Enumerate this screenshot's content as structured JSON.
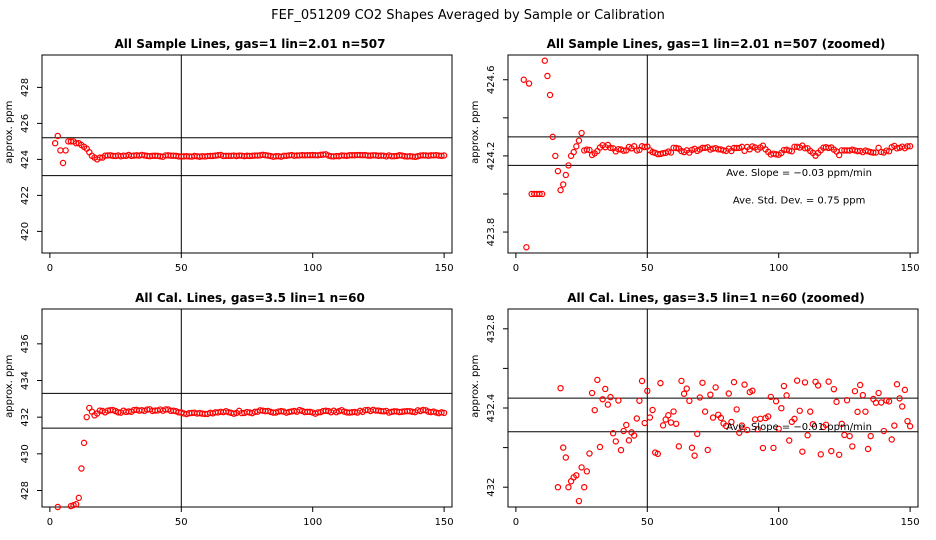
{
  "figure_title": "FEF_051209  CO2 Shapes Averaged by Sample or Calibration",
  "chart_data": [
    {
      "type": "scatter",
      "title": "All Sample Lines, gas=1 lin=2.01 n=507",
      "ylabel": "approx. ppm",
      "xlim": [
        -3,
        153
      ],
      "ylim": [
        418.8,
        429.8
      ],
      "xticks": [
        0,
        50,
        100,
        150
      ],
      "yticks": [
        420,
        422,
        424,
        426,
        428
      ],
      "hlines": [
        425.2,
        423.1
      ],
      "vlines": [
        50
      ],
      "marker_color": "#ff0000",
      "series_gen": {
        "kind": "full",
        "ybase": 424.2,
        "noise": 0.06
      },
      "series": [
        {
          "x": [
            2,
            3,
            4,
            5,
            6,
            7,
            8,
            9,
            10,
            11,
            12,
            13,
            14,
            15,
            16,
            17,
            18,
            19,
            20
          ],
          "y": [
            424.9,
            425.3,
            424.5,
            423.8,
            424.5,
            425.0,
            425.0,
            425.0,
            424.9,
            424.9,
            424.8,
            424.7,
            424.6,
            424.4,
            424.2,
            424.1,
            424.0,
            424.1,
            424.1
          ]
        }
      ],
      "annotations": []
    },
    {
      "type": "scatter",
      "title": "All Sample Lines, gas=1 lin=2.01 n=507 (zoomed)",
      "ylabel": "approx. ppm",
      "xlim": [
        -3,
        153
      ],
      "ylim": [
        423.69,
        424.73
      ],
      "xticks": [
        0,
        50,
        100,
        150
      ],
      "yticks": [
        423.8,
        424.2,
        424.6
      ],
      "ytick_minor": [
        424.0,
        424.4
      ],
      "hlines": [
        424.3,
        424.15
      ],
      "vlines": [
        50
      ],
      "marker_color": "#ff0000",
      "series_gen": {
        "kind": "full",
        "ybase": 424.23,
        "noise": 0.03
      },
      "series": [
        {
          "x": [
            3,
            4,
            5,
            6,
            7,
            8,
            9,
            10,
            11,
            12,
            13,
            14,
            15,
            16,
            17,
            18,
            19,
            20,
            21,
            22,
            23,
            24,
            25
          ],
          "y": [
            424.6,
            423.72,
            424.58,
            424.0,
            424.0,
            424.0,
            424.0,
            424.0,
            424.7,
            424.62,
            424.52,
            424.3,
            424.2,
            424.12,
            424.02,
            424.05,
            424.1,
            424.15,
            424.2,
            424.22,
            424.25,
            424.28,
            424.32
          ]
        }
      ],
      "annotations": [
        "Ave. Slope = −0.03  ppm/min",
        "Ave. Std. Dev. = 0.75  ppm"
      ]
    },
    {
      "type": "scatter",
      "title": "All Cal. Lines, gas=3.5 lin=1 n=60",
      "ylabel": "approx. ppm",
      "xlim": [
        -3,
        153
      ],
      "ylim": [
        427.1,
        437.9
      ],
      "xticks": [
        0,
        50,
        100,
        150
      ],
      "yticks": [
        428,
        430,
        432,
        434,
        436
      ],
      "hlines": [
        433.3,
        431.4
      ],
      "vlines": [
        50
      ],
      "marker_color": "#ff0000",
      "series_gen": {
        "kind": "full",
        "ybase": 432.3,
        "noise": 0.12
      },
      "series": [
        {
          "x": [
            3,
            8,
            9,
            10,
            11,
            12,
            13,
            14,
            15,
            16,
            17,
            18
          ],
          "y": [
            427.1,
            427.15,
            427.2,
            427.25,
            427.6,
            429.2,
            430.6,
            432.0,
            432.5,
            432.3,
            432.1,
            432.2
          ]
        }
      ],
      "annotations": []
    },
    {
      "type": "scatter",
      "title": "All Cal. Lines, gas=3.5 lin=1 n=60 (zoomed)",
      "ylabel": "approx. ppm",
      "xlim": [
        -3,
        153
      ],
      "ylim": [
        431.9,
        432.9
      ],
      "xticks": [
        0,
        50,
        100,
        150
      ],
      "yticks": [
        432.0,
        432.4,
        432.8
      ],
      "ytick_minor": [
        432.2,
        432.6
      ],
      "hlines": [
        432.45,
        432.28
      ],
      "vlines": [
        50
      ],
      "marker_color": "#ff0000",
      "series_gen": {
        "kind": "noisy",
        "ybase": 432.35,
        "noise": 0.12
      },
      "series": [
        {
          "x": [
            16,
            17,
            18,
            19,
            20,
            21,
            22,
            23,
            24,
            25,
            26,
            27,
            28
          ],
          "y": [
            432.0,
            432.5,
            432.2,
            432.15,
            432.0,
            432.03,
            432.05,
            432.06,
            431.93,
            432.1,
            432.0,
            432.08,
            432.17
          ]
        }
      ],
      "annotations": [
        "Ave. Slope = −0.01  ppm/min"
      ]
    }
  ]
}
